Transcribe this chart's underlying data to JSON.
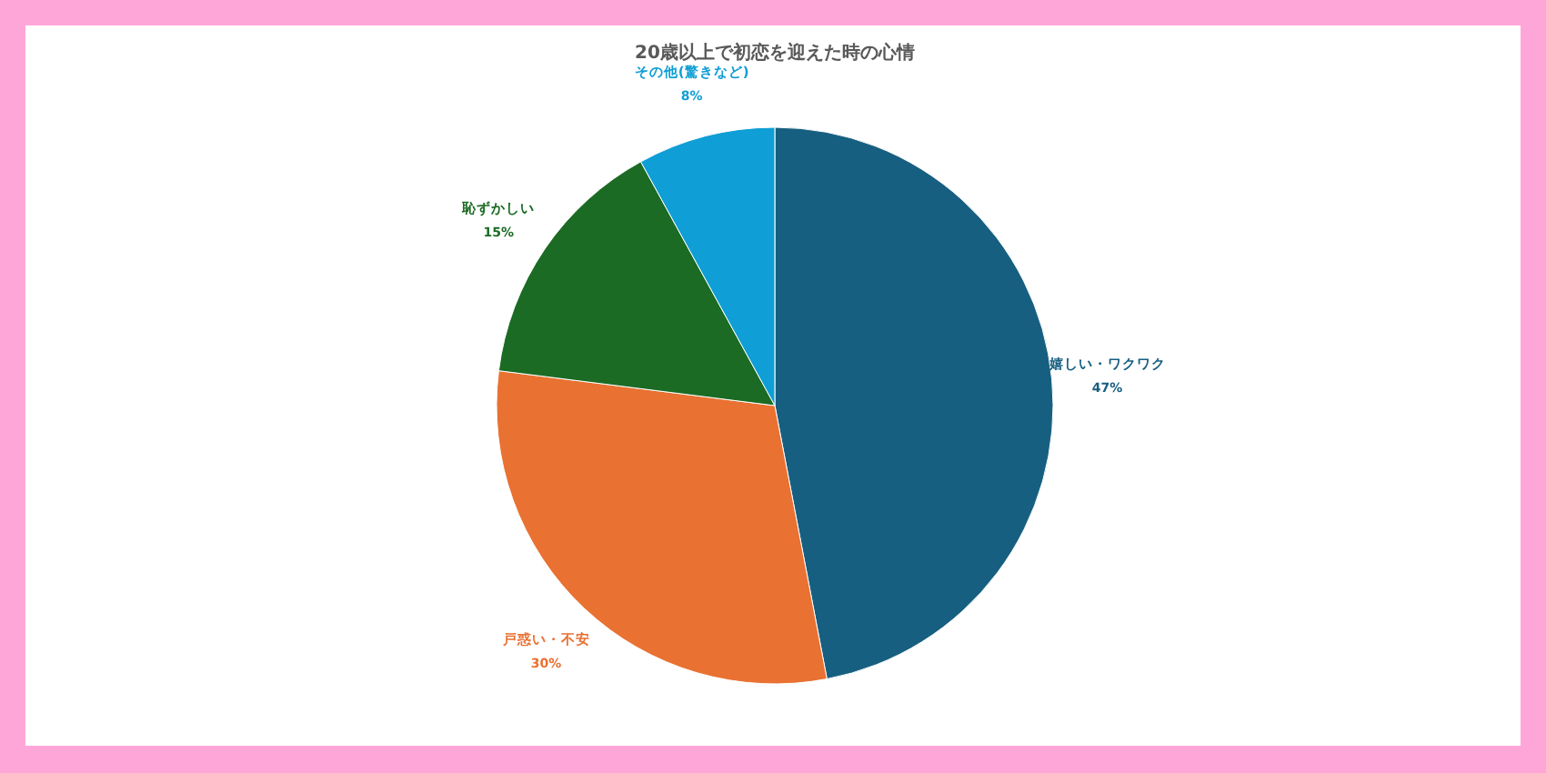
{
  "chart_data": {
    "type": "pie",
    "title": "20歳以上で初恋を迎えた時の心情",
    "categories": [
      "嬉しい・ワクワク",
      "戸惑い・不安",
      "恥ずかしい",
      "その他(驚きなど)"
    ],
    "values": [
      47,
      30,
      15,
      8
    ],
    "colors": [
      "#175f80",
      "#e97132",
      "#1b6b24",
      "#0f9ed5"
    ],
    "value_labels": [
      "47%",
      "30%",
      "15%",
      "8%"
    ]
  }
}
